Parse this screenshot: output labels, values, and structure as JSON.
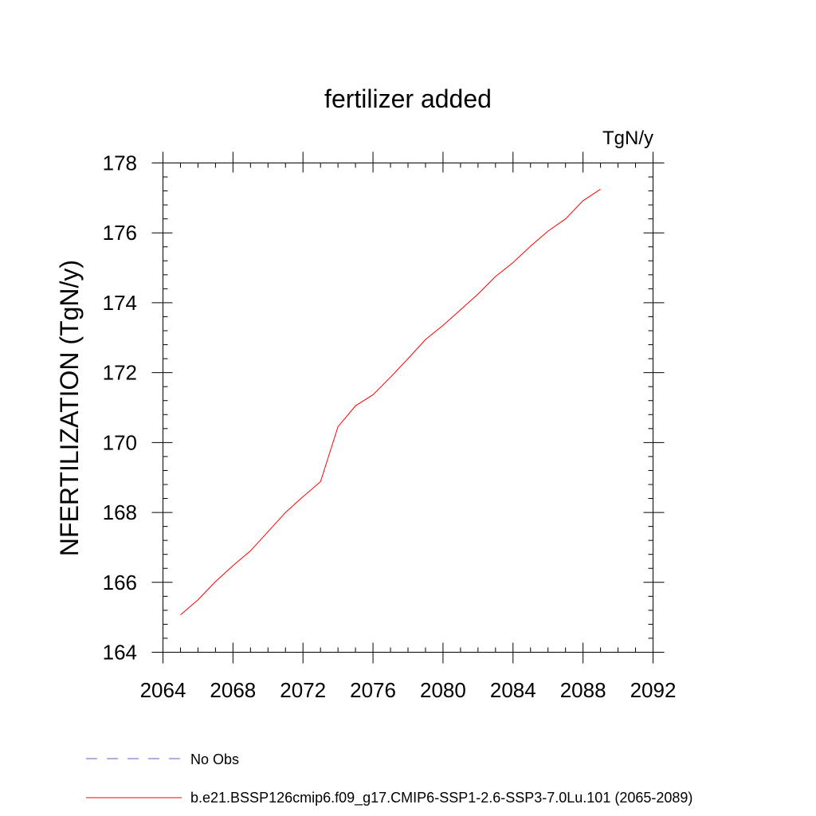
{
  "chart_data": {
    "type": "line",
    "title": "fertilizer added",
    "units": "TgN/y",
    "ylabel": "NFERTILIZATION  (TgN/y)",
    "xlabel": "",
    "xlim": [
      2064,
      2092
    ],
    "ylim": [
      164,
      178
    ],
    "x_ticks": [
      2064,
      2068,
      2072,
      2076,
      2080,
      2084,
      2088,
      2092
    ],
    "y_ticks": [
      164,
      166,
      168,
      170,
      172,
      174,
      176,
      178
    ],
    "grid": false,
    "series": [
      {
        "name": "b.e21.BSSP126cmip6.f09_g17.CMIP6-SSP1-2.6-SSP3-7.0Lu.101 (2065-2089)",
        "color": "#ff0000",
        "x": [
          2065,
          2066,
          2067,
          2068,
          2069,
          2070,
          2071,
          2072,
          2073,
          2074,
          2075,
          2076,
          2077,
          2078,
          2079,
          2080,
          2081,
          2082,
          2083,
          2084,
          2085,
          2086,
          2087,
          2088,
          2089
        ],
        "y": [
          165.07,
          165.5,
          166.02,
          166.48,
          166.9,
          167.45,
          168.0,
          168.45,
          168.88,
          170.45,
          171.05,
          171.37,
          171.87,
          172.4,
          172.95,
          173.35,
          173.8,
          174.25,
          174.75,
          175.15,
          175.62,
          176.05,
          176.4,
          176.92,
          177.25
        ]
      }
    ],
    "legend": [
      {
        "label": "No Obs",
        "style": "dashed",
        "color": "#6a5acd"
      },
      {
        "label": "b.e21.BSSP126cmip6.f09_g17.CMIP6-SSP1-2.6-SSP3-7.0Lu.101 (2065-2089)",
        "style": "solid",
        "color": "#ff0000"
      }
    ],
    "legend_position": "bottom-left"
  }
}
